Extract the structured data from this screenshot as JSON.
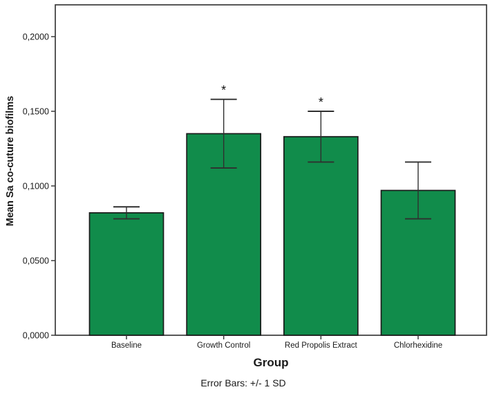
{
  "figure": {
    "background": "#ffffff"
  },
  "chart_data": {
    "type": "bar",
    "title": "",
    "xlabel": "Group",
    "ylabel": "Mean Sa co-cuture biofilms",
    "caption": "Error Bars: +/- 1 SD",
    "categories": [
      "Baseline",
      "Growth Control",
      "Red Propolis Extract",
      "Chlorhexidine"
    ],
    "series": [
      {
        "name": "Mean Sa co-cuture biofilms",
        "values": [
          0.082,
          0.135,
          0.133,
          0.097
        ],
        "sd": [
          0.004,
          0.023,
          0.017,
          0.019
        ]
      }
    ],
    "significance_markers": [
      "",
      "*",
      "*",
      ""
    ],
    "ylim": [
      0,
      0.221
    ],
    "yticks": {
      "values": [
        0,
        0.05,
        0.1,
        0.15,
        0.2
      ],
      "labels": [
        "0,0000",
        "0,0500",
        "0,1000",
        "0,1500",
        "0,2000"
      ]
    },
    "grid": false,
    "legend": "none",
    "colors": {
      "bar_fill": "#118C4B",
      "bar_border": "#1a1a1a",
      "error_bar": "#2f2f2f",
      "frame": "#3a3a3a",
      "text": "#1a1a1a"
    }
  }
}
